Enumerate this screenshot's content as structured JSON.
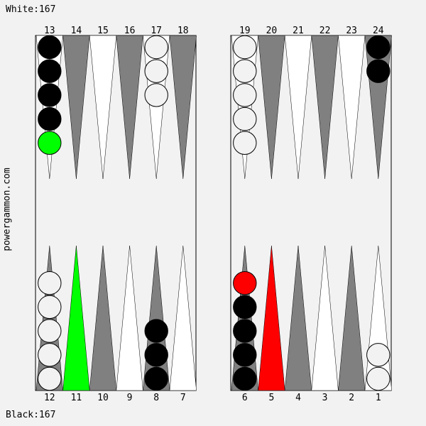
{
  "score_top": "White:167",
  "score_bottom": "Black:167",
  "site_label": "powergammon.com",
  "colors": {
    "background": "#f2f2f2",
    "board": "#f2f2f2",
    "point_dark": "#808080",
    "point_light": "#ffffff",
    "checker_black": "#000000",
    "checker_white": "#f2f2f2",
    "highlight_from": "#00ff00",
    "highlight_to": "#ff0000"
  },
  "highlighted_points": [
    {
      "point": 11,
      "color": "#00ff00"
    },
    {
      "point": 5,
      "color": "#ff0000"
    }
  ],
  "points": [
    {
      "num": "13",
      "checkers": [
        {
          "c": "black"
        },
        {
          "c": "black"
        },
        {
          "c": "black"
        },
        {
          "c": "black"
        },
        {
          "c": "green"
        }
      ]
    },
    {
      "num": "14",
      "checkers": []
    },
    {
      "num": "15",
      "checkers": []
    },
    {
      "num": "16",
      "checkers": []
    },
    {
      "num": "17",
      "checkers": [
        {
          "c": "white"
        },
        {
          "c": "white"
        },
        {
          "c": "white"
        }
      ]
    },
    {
      "num": "18",
      "checkers": []
    },
    {
      "num": "19",
      "checkers": [
        {
          "c": "white"
        },
        {
          "c": "white"
        },
        {
          "c": "white"
        },
        {
          "c": "white"
        },
        {
          "c": "white"
        }
      ]
    },
    {
      "num": "20",
      "checkers": []
    },
    {
      "num": "21",
      "checkers": []
    },
    {
      "num": "22",
      "checkers": []
    },
    {
      "num": "23",
      "checkers": []
    },
    {
      "num": "24",
      "checkers": [
        {
          "c": "black"
        },
        {
          "c": "black"
        }
      ]
    },
    {
      "num": "12",
      "checkers": [
        {
          "c": "white"
        },
        {
          "c": "white"
        },
        {
          "c": "white"
        },
        {
          "c": "white"
        },
        {
          "c": "white"
        }
      ]
    },
    {
      "num": "11",
      "checkers": []
    },
    {
      "num": "10",
      "checkers": []
    },
    {
      "num": "9",
      "checkers": []
    },
    {
      "num": "8",
      "checkers": [
        {
          "c": "black"
        },
        {
          "c": "black"
        },
        {
          "c": "black"
        }
      ]
    },
    {
      "num": "7",
      "checkers": []
    },
    {
      "num": "6",
      "checkers": [
        {
          "c": "black"
        },
        {
          "c": "black"
        },
        {
          "c": "black"
        },
        {
          "c": "black"
        },
        {
          "c": "red"
        }
      ]
    },
    {
      "num": "5",
      "checkers": []
    },
    {
      "num": "4",
      "checkers": []
    },
    {
      "num": "3",
      "checkers": []
    },
    {
      "num": "2",
      "checkers": []
    },
    {
      "num": "1",
      "checkers": [
        {
          "c": "white"
        },
        {
          "c": "white"
        }
      ]
    }
  ]
}
